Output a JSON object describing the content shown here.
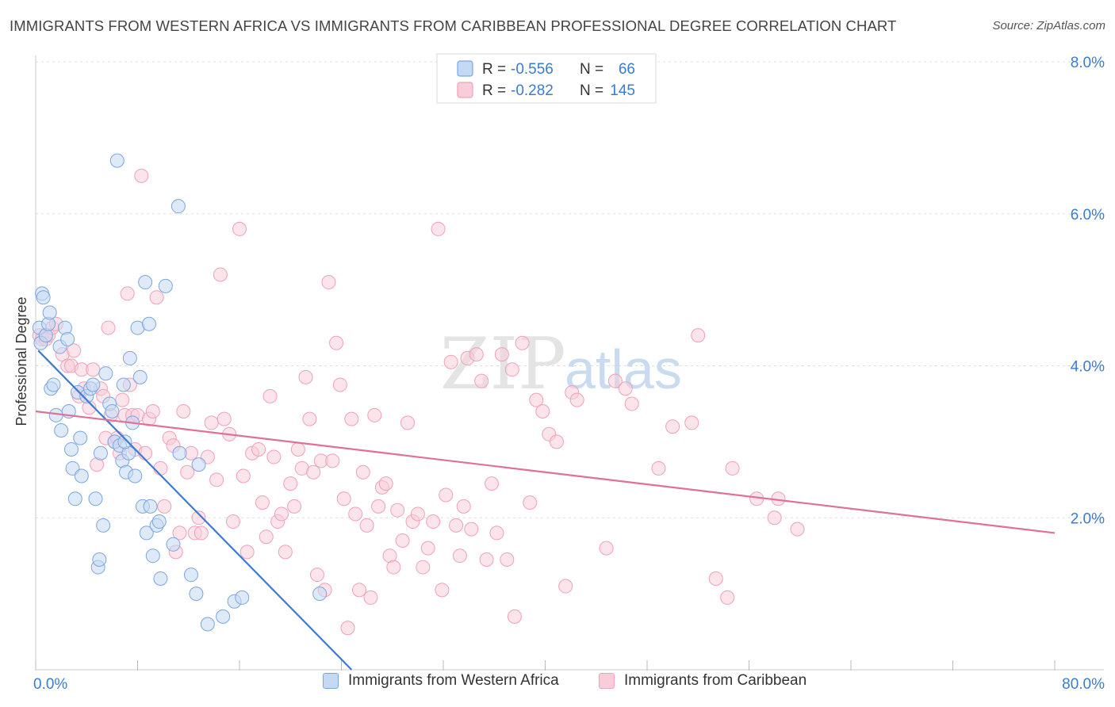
{
  "title": "IMMIGRANTS FROM WESTERN AFRICA VS IMMIGRANTS FROM CARIBBEAN PROFESSIONAL DEGREE CORRELATION CHART",
  "source": "Source: ZipAtlas.com",
  "watermark": {
    "zip": "ZIP",
    "atlas": "atlas"
  },
  "stats_legend": {
    "rows": [
      {
        "r_label": "R =",
        "r_value": "-0.556",
        "n_label": "N =",
        "n_value": "66",
        "color": "#7aa6e0"
      },
      {
        "r_label": "R =",
        "r_value": "-0.282",
        "n_label": "N =",
        "n_value": "145",
        "color": "#f0a0ba"
      }
    ]
  },
  "legend": [
    {
      "label": "Immigrants from Western Africa",
      "fill": "#c5d9f4",
      "stroke": "#7aa6e0"
    },
    {
      "label": "Immigrants from Caribbean",
      "fill": "#f8cdd9",
      "stroke": "#eea3ba"
    }
  ],
  "chart_data": {
    "type": "scatter",
    "title": "IMMIGRANTS FROM WESTERN AFRICA VS IMMIGRANTS FROM CARIBBEAN PROFESSIONAL DEGREE CORRELATION CHART",
    "xlabel": "",
    "ylabel": "Professional Degree",
    "x_unit": "%",
    "xlim": [
      0,
      80
    ],
    "ylim": [
      0,
      8
    ],
    "x_ticks_labels": [
      "0.0%",
      "80.0%"
    ],
    "y_ticks": [
      2,
      4,
      6,
      8
    ],
    "y_tick_labels": [
      "2.0%",
      "4.0%",
      "6.0%",
      "8.0%"
    ],
    "grid": "horizontal dashed",
    "legend_position": "bottom",
    "series": [
      {
        "name": "Immigrants from Western Africa",
        "color": "#7aa6e0",
        "line_color": "#3a7bd5",
        "trend": {
          "x": [
            0.2,
            24.8
          ],
          "y": [
            4.2,
            0.0
          ]
        },
        "points": [
          [
            0.3,
            4.5
          ],
          [
            0.4,
            4.3
          ],
          [
            0.5,
            4.95
          ],
          [
            0.6,
            4.9
          ],
          [
            0.8,
            4.4
          ],
          [
            1.0,
            4.55
          ],
          [
            1.1,
            4.7
          ],
          [
            1.2,
            3.7
          ],
          [
            1.4,
            3.75
          ],
          [
            1.6,
            3.35
          ],
          [
            1.9,
            4.25
          ],
          [
            2.0,
            3.15
          ],
          [
            2.3,
            4.5
          ],
          [
            2.5,
            4.35
          ],
          [
            2.6,
            3.4
          ],
          [
            2.8,
            2.9
          ],
          [
            2.9,
            2.65
          ],
          [
            3.1,
            2.25
          ],
          [
            3.3,
            3.65
          ],
          [
            3.5,
            3.05
          ],
          [
            3.6,
            2.55
          ],
          [
            4.0,
            3.6
          ],
          [
            4.3,
            3.7
          ],
          [
            4.5,
            3.75
          ],
          [
            4.7,
            2.25
          ],
          [
            4.9,
            1.35
          ],
          [
            5.0,
            1.45
          ],
          [
            5.1,
            2.85
          ],
          [
            5.3,
            1.9
          ],
          [
            5.5,
            3.9
          ],
          [
            5.8,
            3.5
          ],
          [
            6.0,
            3.4
          ],
          [
            6.2,
            3.0
          ],
          [
            6.4,
            6.7
          ],
          [
            6.6,
            2.95
          ],
          [
            6.8,
            2.75
          ],
          [
            6.9,
            3.75
          ],
          [
            7.1,
            2.6
          ],
          [
            7.3,
            2.85
          ],
          [
            7.4,
            4.1
          ],
          [
            7.6,
            3.25
          ],
          [
            7.8,
            2.55
          ],
          [
            8.0,
            4.5
          ],
          [
            8.2,
            3.85
          ],
          [
            8.4,
            2.15
          ],
          [
            8.6,
            5.1
          ],
          [
            8.7,
            1.8
          ],
          [
            8.9,
            4.55
          ],
          [
            9.0,
            2.15
          ],
          [
            9.2,
            1.5
          ],
          [
            9.5,
            1.9
          ],
          [
            9.7,
            1.95
          ],
          [
            9.8,
            1.2
          ],
          [
            10.2,
            5.05
          ],
          [
            10.8,
            1.65
          ],
          [
            11.2,
            6.1
          ],
          [
            11.3,
            2.85
          ],
          [
            12.2,
            1.25
          ],
          [
            12.6,
            1.0
          ],
          [
            12.8,
            2.7
          ],
          [
            13.5,
            0.6
          ],
          [
            14.7,
            0.7
          ],
          [
            15.6,
            0.9
          ],
          [
            16.2,
            0.95
          ],
          [
            22.3,
            1.0
          ],
          [
            7.0,
            3.0
          ]
        ]
      },
      {
        "name": "Immigrants from Caribbean",
        "color": "#f0a0ba",
        "line_color": "#e07098",
        "trend": {
          "x": [
            0.0,
            80.0
          ],
          "y": [
            3.4,
            1.8
          ]
        },
        "points": [
          [
            0.3,
            4.4
          ],
          [
            0.5,
            4.35
          ],
          [
            0.8,
            4.35
          ],
          [
            1.0,
            4.4
          ],
          [
            1.3,
            4.5
          ],
          [
            1.6,
            4.55
          ],
          [
            2.1,
            4.15
          ],
          [
            2.5,
            4.0
          ],
          [
            2.8,
            4.0
          ],
          [
            3.0,
            4.2
          ],
          [
            3.4,
            3.6
          ],
          [
            3.6,
            3.95
          ],
          [
            3.8,
            3.7
          ],
          [
            4.2,
            3.45
          ],
          [
            4.5,
            3.95
          ],
          [
            4.8,
            2.7
          ],
          [
            5.1,
            3.7
          ],
          [
            5.3,
            3.6
          ],
          [
            5.5,
            3.05
          ],
          [
            5.7,
            4.5
          ],
          [
            5.9,
            3.35
          ],
          [
            6.2,
            3.0
          ],
          [
            6.4,
            3.05
          ],
          [
            6.6,
            2.85
          ],
          [
            6.8,
            3.55
          ],
          [
            7.0,
            3.35
          ],
          [
            7.2,
            4.95
          ],
          [
            7.4,
            3.75
          ],
          [
            7.6,
            3.35
          ],
          [
            7.8,
            2.9
          ],
          [
            8.0,
            3.35
          ],
          [
            8.3,
            6.5
          ],
          [
            8.6,
            2.85
          ],
          [
            8.9,
            3.3
          ],
          [
            9.2,
            3.4
          ],
          [
            9.5,
            4.9
          ],
          [
            9.8,
            2.65
          ],
          [
            10.1,
            2.15
          ],
          [
            10.5,
            3.05
          ],
          [
            10.8,
            2.95
          ],
          [
            11.0,
            1.55
          ],
          [
            11.3,
            1.8
          ],
          [
            11.6,
            3.4
          ],
          [
            11.9,
            2.6
          ],
          [
            12.2,
            2.85
          ],
          [
            12.5,
            1.8
          ],
          [
            12.8,
            2.0
          ],
          [
            13.0,
            1.8
          ],
          [
            13.5,
            2.8
          ],
          [
            13.8,
            3.25
          ],
          [
            14.2,
            2.5
          ],
          [
            14.5,
            5.2
          ],
          [
            14.8,
            3.3
          ],
          [
            15.2,
            3.1
          ],
          [
            15.5,
            1.95
          ],
          [
            16.0,
            5.8
          ],
          [
            16.3,
            2.55
          ],
          [
            16.6,
            1.55
          ],
          [
            17.0,
            2.85
          ],
          [
            17.5,
            2.9
          ],
          [
            17.8,
            2.2
          ],
          [
            18.1,
            1.75
          ],
          [
            18.4,
            3.6
          ],
          [
            18.7,
            2.8
          ],
          [
            19.0,
            1.95
          ],
          [
            19.3,
            2.05
          ],
          [
            19.6,
            1.55
          ],
          [
            20.0,
            2.45
          ],
          [
            20.3,
            2.15
          ],
          [
            20.6,
            2.9
          ],
          [
            20.9,
            2.65
          ],
          [
            21.2,
            3.85
          ],
          [
            21.5,
            3.3
          ],
          [
            21.8,
            2.6
          ],
          [
            22.1,
            1.25
          ],
          [
            22.4,
            2.75
          ],
          [
            22.7,
            1.05
          ],
          [
            23.0,
            5.1
          ],
          [
            23.3,
            2.75
          ],
          [
            23.6,
            4.3
          ],
          [
            23.9,
            3.75
          ],
          [
            24.2,
            2.25
          ],
          [
            24.5,
            0.55
          ],
          [
            24.8,
            3.3
          ],
          [
            25.1,
            2.05
          ],
          [
            25.4,
            1.05
          ],
          [
            25.7,
            2.6
          ],
          [
            26.0,
            1.9
          ],
          [
            26.3,
            0.95
          ],
          [
            26.6,
            3.35
          ],
          [
            26.9,
            2.15
          ],
          [
            27.2,
            2.4
          ],
          [
            27.5,
            2.45
          ],
          [
            27.8,
            1.5
          ],
          [
            28.1,
            1.35
          ],
          [
            28.4,
            2.1
          ],
          [
            28.8,
            1.7
          ],
          [
            29.2,
            3.25
          ],
          [
            29.6,
            1.95
          ],
          [
            30.0,
            2.05
          ],
          [
            30.4,
            1.35
          ],
          [
            30.8,
            1.6
          ],
          [
            31.2,
            1.95
          ],
          [
            31.6,
            5.8
          ],
          [
            31.9,
            1.05
          ],
          [
            32.2,
            2.3
          ],
          [
            32.6,
            4.05
          ],
          [
            33.0,
            1.9
          ],
          [
            33.3,
            1.5
          ],
          [
            33.6,
            2.15
          ],
          [
            33.9,
            4.1
          ],
          [
            34.2,
            1.85
          ],
          [
            34.6,
            4.15
          ],
          [
            35.0,
            3.8
          ],
          [
            35.4,
            1.45
          ],
          [
            35.8,
            2.45
          ],
          [
            36.2,
            1.8
          ],
          [
            36.6,
            4.15
          ],
          [
            37.0,
            1.45
          ],
          [
            37.4,
            3.95
          ],
          [
            37.6,
            0.7
          ],
          [
            38.2,
            4.3
          ],
          [
            38.8,
            2.2
          ],
          [
            39.3,
            3.55
          ],
          [
            39.8,
            3.4
          ],
          [
            40.3,
            3.1
          ],
          [
            40.9,
            3.0
          ],
          [
            41.6,
            1.1
          ],
          [
            42.1,
            3.65
          ],
          [
            42.5,
            3.55
          ],
          [
            44.8,
            1.6
          ],
          [
            45.5,
            3.8
          ],
          [
            46.3,
            3.7
          ],
          [
            46.8,
            3.5
          ],
          [
            48.9,
            2.65
          ],
          [
            50.0,
            3.2
          ],
          [
            51.5,
            3.25
          ],
          [
            52.0,
            4.4
          ],
          [
            53.4,
            1.2
          ],
          [
            54.7,
            2.65
          ],
          [
            56.6,
            2.25
          ],
          [
            58.0,
            2.0
          ],
          [
            58.3,
            2.25
          ],
          [
            59.8,
            1.85
          ],
          [
            54.3,
            0.95
          ]
        ]
      }
    ]
  }
}
